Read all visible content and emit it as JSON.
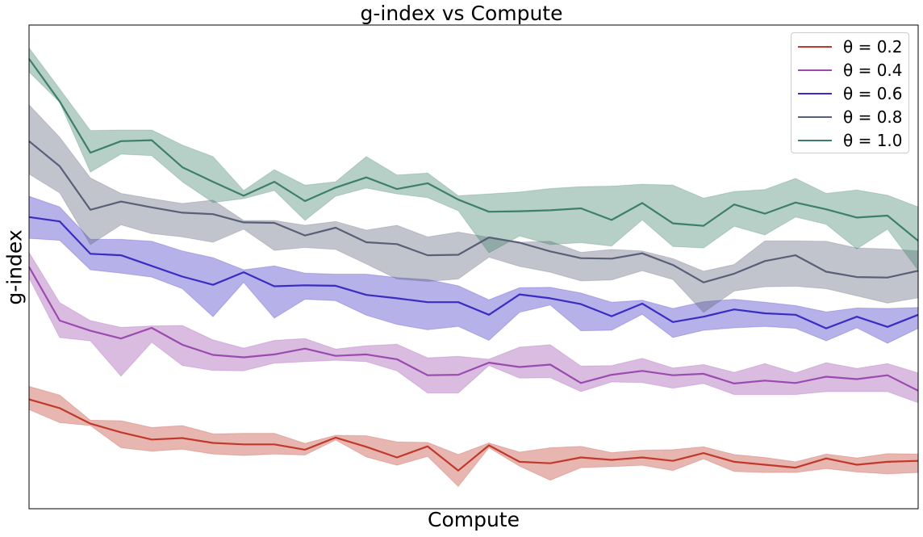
{
  "chart_data": {
    "type": "line",
    "title": "g-index vs Compute",
    "xlabel": "Compute",
    "ylabel": "g-index",
    "xlim": [
      0,
      29
    ],
    "ylim": [
      0,
      100
    ],
    "x": [
      0,
      1,
      2,
      3,
      4,
      5,
      6,
      7,
      8,
      9,
      10,
      11,
      12,
      13,
      14,
      15,
      16,
      17,
      18,
      19,
      20,
      21,
      22,
      23,
      24,
      25,
      26,
      27,
      28,
      29
    ],
    "grid": false,
    "legend_position": "top-right",
    "show_ticks": false,
    "series": [
      {
        "name": "θ = 0.2",
        "color": "#c0392b",
        "values": [
          22.6,
          20.8,
          17.6,
          15.8,
          14.3,
          14.6,
          13.6,
          13.3,
          13.3,
          12.2,
          14.7,
          12.8,
          10.6,
          12.9,
          7.9,
          13.1,
          9.7,
          9.4,
          10.6,
          10.1,
          10.6,
          9.9,
          11.5,
          9.7,
          9.1,
          8.5,
          10.4,
          9.1,
          9.7,
          9.9
        ],
        "lower": [
          20.5,
          17.8,
          17.2,
          12.6,
          11.9,
          12.3,
          11.3,
          11.0,
          11.3,
          11.1,
          14.2,
          10.7,
          9.0,
          10.8,
          4.6,
          12.6,
          8.8,
          5.9,
          8.5,
          8.7,
          9.0,
          7.9,
          10.3,
          7.7,
          7.5,
          7.5,
          8.3,
          7.6,
          7.2,
          7.5
        ],
        "upper": [
          25.3,
          23.5,
          18.3,
          18.2,
          16.8,
          17.2,
          15.5,
          15.6,
          15.6,
          13.5,
          15.2,
          15.1,
          13.8,
          13.7,
          11.2,
          13.6,
          11.7,
          12.6,
          12.9,
          11.6,
          12.1,
          12.2,
          12.8,
          11.2,
          10.6,
          9.7,
          11.3,
          10.5,
          11.4,
          11.3
        ]
      },
      {
        "name": "θ = 0.4",
        "color": "#9b4aad",
        "values": [
          50.0,
          38.9,
          36.8,
          35.2,
          37.4,
          33.9,
          31.8,
          31.3,
          31.9,
          33.1,
          31.6,
          31.9,
          30.9,
          27.6,
          27.7,
          30.2,
          29.3,
          29.8,
          26.0,
          27.7,
          28.5,
          27.6,
          27.9,
          25.9,
          26.5,
          26.0,
          27.3,
          26.8,
          27.6,
          24.4
        ],
        "lower": [
          47.7,
          35.4,
          34.7,
          27.4,
          34.4,
          29.6,
          28.6,
          28.5,
          30.1,
          30.4,
          30.7,
          30.4,
          28.5,
          23.9,
          23.9,
          29.6,
          27.0,
          27.1,
          24.2,
          26.2,
          26.1,
          24.9,
          25.9,
          23.6,
          23.6,
          23.6,
          24.2,
          24.2,
          24.2,
          21.9
        ],
        "upper": [
          53.0,
          42.6,
          38.9,
          37.5,
          37.8,
          37.9,
          34.9,
          33.2,
          34.8,
          35.2,
          33.0,
          33.7,
          34.0,
          31.2,
          31.5,
          30.9,
          33.4,
          33.9,
          29.5,
          29.6,
          31.1,
          29.1,
          29.8,
          28.2,
          30.0,
          28.1,
          30.2,
          29.0,
          30.0,
          28.1
        ]
      },
      {
        "name": "θ = 0.6",
        "color": "#3a2cc2",
        "values": [
          60.3,
          59.4,
          52.7,
          52.4,
          50.2,
          48.0,
          46.3,
          48.9,
          46.0,
          46.2,
          46.1,
          44.2,
          43.5,
          42.7,
          42.7,
          40.1,
          44.3,
          43.5,
          42.3,
          39.8,
          42.4,
          38.6,
          39.7,
          41.2,
          40.4,
          40.1,
          37.3,
          39.7,
          37.6,
          40.1
        ],
        "lower": [
          55.9,
          55.5,
          49.4,
          48.7,
          47.9,
          45.5,
          39.7,
          46.8,
          39.4,
          43.3,
          43.0,
          40.0,
          38.1,
          37.0,
          37.7,
          34.8,
          40.6,
          42.1,
          36.8,
          36.9,
          40.2,
          35.4,
          36.9,
          37.4,
          37.7,
          37.3,
          34.7,
          37.4,
          34.2,
          37.3
        ],
        "upper": [
          64.6,
          62.4,
          55.7,
          55.7,
          55.3,
          53.3,
          51.9,
          49.4,
          50.2,
          48.7,
          48.5,
          48.5,
          47.8,
          47.4,
          46.1,
          43.2,
          45.7,
          45.8,
          44.6,
          42.7,
          43.1,
          41.4,
          42.8,
          43.3,
          42.7,
          42.0,
          40.7,
          41.5,
          41.4,
          41.6
        ]
      },
      {
        "name": "θ = 0.8",
        "color": "#5a5f78",
        "values": [
          76.0,
          70.8,
          61.8,
          63.5,
          62.3,
          61.2,
          60.9,
          59.2,
          59.1,
          56.5,
          58.1,
          55.1,
          54.7,
          52.4,
          52.5,
          56.1,
          55.0,
          53.2,
          51.8,
          51.7,
          52.8,
          50.4,
          46.8,
          48.6,
          51.2,
          52.4,
          49.0,
          47.9,
          47.8,
          49.2
        ],
        "lower": [
          69.2,
          65.3,
          54.6,
          58.7,
          56.9,
          56.2,
          55.1,
          57.8,
          53.4,
          54.0,
          53.6,
          50.6,
          47.5,
          47.0,
          47.5,
          52.0,
          50.1,
          48.9,
          47.1,
          47.3,
          49.2,
          47.4,
          40.6,
          45.0,
          45.9,
          46.0,
          45.5,
          44.0,
          42.5,
          43.6
        ],
        "upper": [
          83.5,
          76.8,
          68.4,
          65.2,
          64.1,
          63.1,
          63.8,
          59.6,
          59.6,
          58.6,
          59.4,
          57.6,
          58.6,
          56.2,
          57.2,
          56.1,
          55.1,
          55.3,
          53.0,
          53.6,
          53.3,
          51.7,
          49.1,
          50.5,
          55.4,
          55.4,
          55.3,
          53.9,
          53.7,
          53.3
        ]
      },
      {
        "name": "θ = 1.0",
        "color": "#3d7f68",
        "values": [
          93.0,
          84.2,
          73.6,
          76.0,
          76.2,
          70.6,
          67.6,
          64.7,
          67.6,
          63.6,
          66.4,
          68.5,
          66.1,
          67.3,
          63.9,
          61.4,
          61.5,
          61.7,
          62.1,
          59.7,
          63.2,
          59.0,
          58.5,
          62.9,
          61.0,
          63.3,
          61.9,
          60.2,
          60.6,
          55.4
        ],
        "lower": [
          90.3,
          84.0,
          69.6,
          73.3,
          73.0,
          67.6,
          63.3,
          64.1,
          65.8,
          59.6,
          64.6,
          66.3,
          65.1,
          64.3,
          61.6,
          52.9,
          56.4,
          54.6,
          55.0,
          54.3,
          59.7,
          54.2,
          53.9,
          58.4,
          56.6,
          60.3,
          58.8,
          53.7,
          57.8,
          49.3
        ],
        "upper": [
          95.3,
          86.8,
          78.2,
          78.3,
          78.3,
          75.2,
          72.8,
          65.8,
          70.1,
          66.9,
          67.6,
          72.8,
          69.0,
          69.4,
          64.7,
          65.1,
          65.5,
          66.2,
          66.6,
          66.7,
          67.1,
          66.9,
          64.2,
          65.6,
          66.0,
          68.3,
          65.2,
          65.9,
          64.8,
          62.4
        ]
      }
    ]
  }
}
